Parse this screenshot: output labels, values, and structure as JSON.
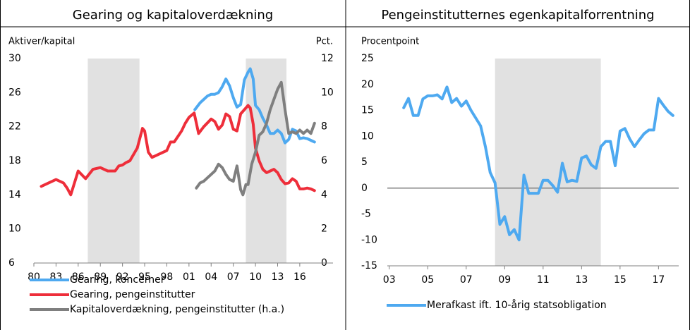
{
  "chart_data": [
    {
      "type": "line",
      "title": "Gearing og kapitaloverdækning",
      "ylabel": "Aktiver/kapital",
      "y2label": "Pct.",
      "xlim": [
        1980,
        2020.5
      ],
      "xticks": [
        {
          "value": 1980,
          "label": "80"
        },
        {
          "value": 1983,
          "label": "83"
        },
        {
          "value": 1986,
          "label": "86"
        },
        {
          "value": 1989,
          "label": "89"
        },
        {
          "value": 1992,
          "label": "92"
        },
        {
          "value": 1995,
          "label": "95"
        },
        {
          "value": 1998,
          "label": "98"
        },
        {
          "value": 2001,
          "label": "01"
        },
        {
          "value": 2004,
          "label": "04"
        },
        {
          "value": 2007,
          "label": "07"
        },
        {
          "value": 2010,
          "label": "10"
        },
        {
          "value": 2013,
          "label": "13"
        },
        {
          "value": 2016,
          "label": "16"
        }
      ],
      "ylim": [
        6,
        30
      ],
      "yticks": [
        6,
        10,
        14,
        18,
        22,
        26,
        30
      ],
      "y2lim": [
        0,
        12
      ],
      "y2ticks": [
        0,
        2,
        4,
        6,
        8,
        10,
        12
      ],
      "shaded": [
        [
          1987.3,
          1994.3
        ],
        [
          2008.7,
          2014.2
        ]
      ],
      "shade_color": "#e1e1e1",
      "legend": "bottom",
      "series": [
        {
          "name": "Gearing, koncerner",
          "color": "#4ea9f0",
          "x": [
            2001.8,
            2002.5,
            2003,
            2003.5,
            2004,
            2004.5,
            2005,
            2005.5,
            2006,
            2006.5,
            2007,
            2007.5,
            2008,
            2008.5,
            2009,
            2009.3,
            2009.7,
            2010,
            2010.5,
            2011,
            2011.5,
            2012,
            2012.5,
            2013,
            2013.5,
            2014,
            2014.5,
            2015,
            2015.5,
            2016,
            2016.5,
            2017,
            2017.5,
            2018
          ],
          "values": [
            24,
            24.8,
            25.2,
            25.6,
            25.8,
            25.8,
            26,
            26.7,
            27.6,
            26.8,
            25.4,
            24.3,
            24.6,
            27.5,
            28.4,
            28.8,
            27.6,
            24.5,
            24,
            23,
            22.2,
            21.2,
            21.2,
            21.6,
            21.2,
            20.1,
            20.5,
            21.7,
            21.5,
            20.6,
            20.7,
            20.6,
            20.4,
            20.2
          ]
        },
        {
          "name": "Gearing, pengeinstitutter",
          "color": "#ee2e3a",
          "x": [
            1981,
            1982,
            1983,
            1984,
            1984.5,
            1985,
            1986,
            1987,
            1988,
            1989,
            1990,
            1991,
            1991.5,
            1992,
            1992.5,
            1993,
            1994,
            1994.7,
            1995,
            1995.5,
            1996,
            1996.5,
            1997,
            1998,
            1998.5,
            1999,
            2000,
            2000.5,
            2001,
            2001.7,
            2002.3,
            2003,
            2004,
            2004.5,
            2005,
            2005.5,
            2006,
            2006.5,
            2007,
            2007.5,
            2008,
            2008.5,
            2009,
            2009.3,
            2009.7,
            2010,
            2010.5,
            2011,
            2011.5,
            2012,
            2012.5,
            2013,
            2013.5,
            2014,
            2014.5,
            2015,
            2015.5,
            2016,
            2016.5,
            2017,
            2017.5,
            2018
          ],
          "values": [
            15,
            15.4,
            15.8,
            15.4,
            14.8,
            14,
            16.8,
            15.9,
            17,
            17.2,
            16.8,
            16.8,
            17.4,
            17.5,
            17.8,
            18,
            19.5,
            21.8,
            21.5,
            19,
            18.4,
            18.6,
            18.8,
            19.2,
            20.2,
            20.2,
            21.5,
            22.4,
            23.1,
            23.6,
            21.2,
            22,
            22.9,
            22.6,
            21.7,
            22.2,
            23.5,
            23.2,
            21.7,
            21.5,
            23.5,
            24,
            24.5,
            24.2,
            22.3,
            19.5,
            18,
            17,
            16.6,
            16.8,
            17,
            16.6,
            15.8,
            15.3,
            15.4,
            15.9,
            15.6,
            14.7,
            14.7,
            14.8,
            14.7,
            14.5
          ]
        },
        {
          "name": "Kapitaloverdækning, pengeinstitutter (h.a.)",
          "color": "#7f7f7f",
          "axis": "y2",
          "x": [
            2002,
            2002.5,
            2003,
            2003.5,
            2004,
            2004.5,
            2005,
            2005.5,
            2006,
            2006.5,
            2007,
            2007.5,
            2008,
            2008.3,
            2008.7,
            2009,
            2009.5,
            2010,
            2010.5,
            2011,
            2011.5,
            2012,
            2012.5,
            2013,
            2013.5,
            2014,
            2014.5,
            2015,
            2015.5,
            2016,
            2016.5,
            2017,
            2017.5,
            2018
          ],
          "values": [
            4.4,
            4.7,
            4.8,
            5,
            5.2,
            5.4,
            5.8,
            5.6,
            5.2,
            4.9,
            4.8,
            5.7,
            4.3,
            4,
            4.6,
            4.6,
            5.8,
            6.5,
            7.5,
            7.7,
            8.2,
            9,
            9.6,
            10.2,
            10.6,
            9,
            7.6,
            7.7,
            7.6,
            7.8,
            7.6,
            7.8,
            7.6,
            8.2
          ]
        }
      ]
    },
    {
      "type": "line",
      "title": "Pengeinstitutternes egenkapitalforrentning",
      "ylabel": "Procentpoint",
      "xlim": [
        2002.9,
        2018.05
      ],
      "xticks": [
        {
          "value": 2003,
          "label": "03"
        },
        {
          "value": 2005,
          "label": "05"
        },
        {
          "value": 2007,
          "label": "07"
        },
        {
          "value": 2009,
          "label": "09"
        },
        {
          "value": 2011,
          "label": "11"
        },
        {
          "value": 2013,
          "label": "13"
        },
        {
          "value": 2015,
          "label": "15"
        },
        {
          "value": 2017,
          "label": "17"
        }
      ],
      "ylim": [
        -15,
        25
      ],
      "yticks": [
        -15,
        -10,
        -5,
        0,
        5,
        10,
        15,
        20,
        25
      ],
      "shaded": [
        [
          2008.5,
          2014
        ]
      ],
      "shade_color": "#e1e1e1",
      "zero_line": true,
      "legend": "bottom",
      "series": [
        {
          "name": "Merafkast ift. 10-årig statsobligation",
          "color": "#4ea9f0",
          "x": [
            2003.75,
            2004,
            2004.25,
            2004.5,
            2004.75,
            2005,
            2005.25,
            2005.5,
            2005.75,
            2006,
            2006.25,
            2006.5,
            2006.75,
            2007,
            2007.25,
            2007.5,
            2007.75,
            2008,
            2008.25,
            2008.5,
            2008.75,
            2009,
            2009.25,
            2009.5,
            2009.75,
            2010,
            2010.25,
            2010.5,
            2010.75,
            2011,
            2011.25,
            2011.5,
            2011.75,
            2012,
            2012.25,
            2012.5,
            2012.75,
            2013,
            2013.25,
            2013.5,
            2013.75,
            2014,
            2014.25,
            2014.5,
            2014.75,
            2015,
            2015.25,
            2015.5,
            2015.75,
            2016,
            2016.25,
            2016.5,
            2016.75,
            2017,
            2017.25,
            2017.5,
            2017.75
          ],
          "values": [
            15.5,
            17.3,
            14,
            14,
            17.2,
            17.8,
            17.8,
            18,
            17.2,
            19.5,
            16.5,
            17.3,
            15.8,
            16.8,
            15,
            13.5,
            12,
            8,
            3,
            1,
            -7,
            -5.5,
            -9,
            -8,
            -10,
            2.5,
            -1,
            -1,
            -1,
            1.5,
            1.5,
            0.5,
            -0.8,
            4.8,
            1.2,
            1.5,
            1.3,
            5.8,
            6.2,
            4.5,
            3.8,
            8,
            9,
            9,
            4.3,
            11,
            11.5,
            9.5,
            8,
            9.3,
            10.5,
            11.2,
            11.2,
            17.3,
            16,
            14.8,
            14
          ]
        }
      ]
    }
  ]
}
